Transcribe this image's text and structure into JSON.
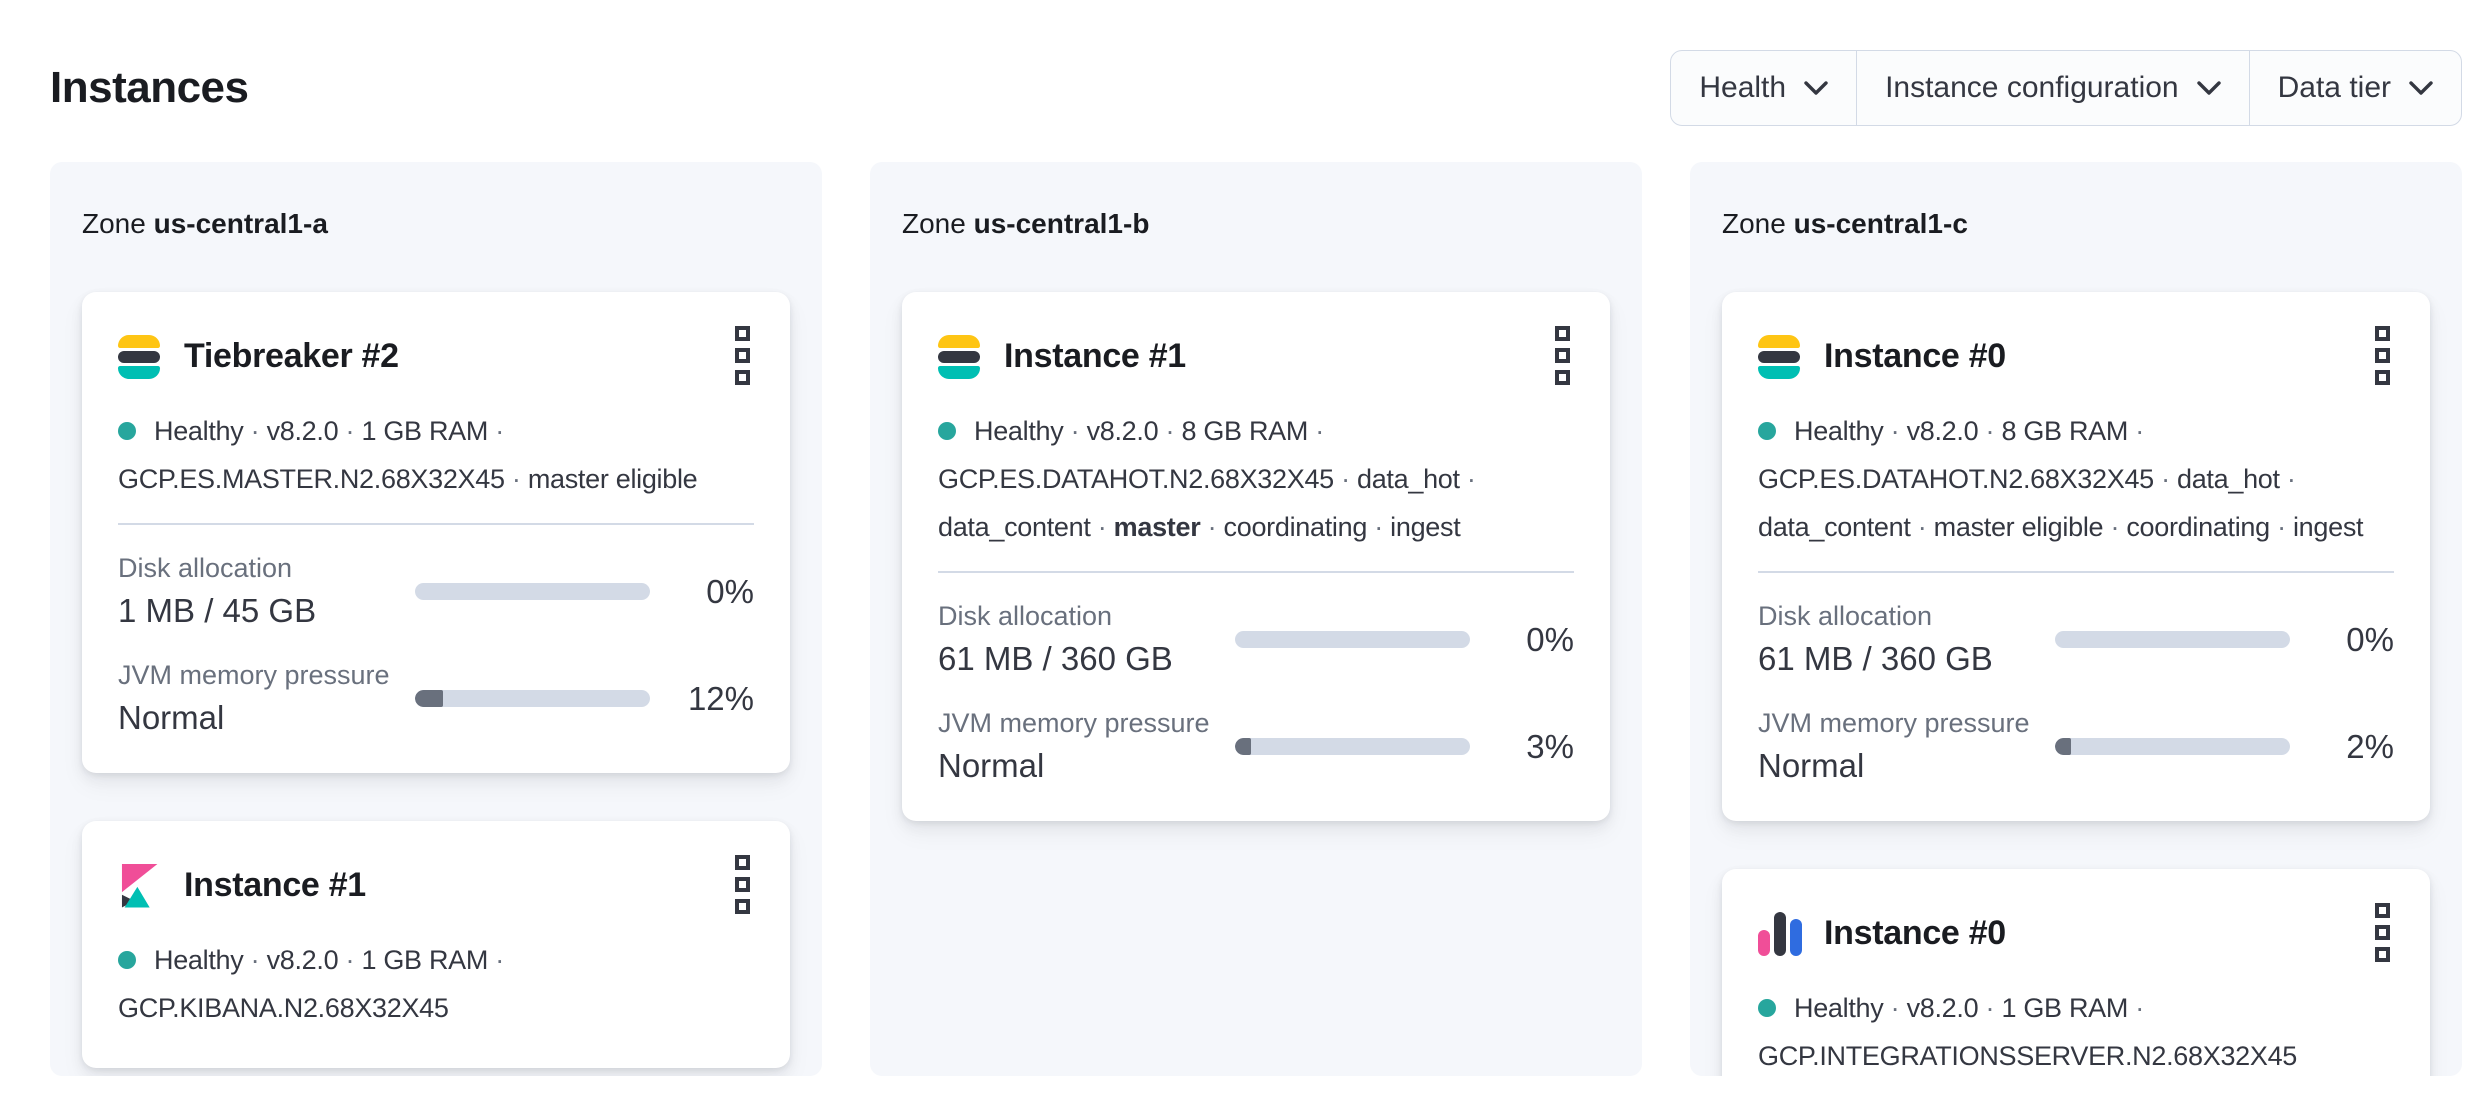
{
  "page": {
    "title": "Instances"
  },
  "filters": [
    {
      "label": "Health"
    },
    {
      "label": "Instance configuration"
    },
    {
      "label": "Data tier"
    }
  ],
  "colors": {
    "healthy_dot": "#27a69d",
    "progress_track": "#d3dae6",
    "progress_fill": "#69707d",
    "divider": "#d3dae6",
    "panel_bg": "#f5f7fb",
    "es_yellow": "#fec514",
    "es_dark": "#343741",
    "es_teal": "#00bfb3",
    "kibana_pink": "#f04e98",
    "kibana_dark": "#343741",
    "kibana_teal": "#00bfb3",
    "integrations_pink": "#f04e98",
    "integrations_dark": "#343741",
    "integrations_blue": "#2f6ce0"
  },
  "icons": {
    "menu": "boxes-vertical-icon",
    "dropdown": "chevron-down-icon"
  },
  "zones": [
    {
      "label": "Zone",
      "name": "us-central1-a",
      "instances": [
        {
          "title": "Tiebreaker #2",
          "logo": "elasticsearch",
          "status_segments": [
            {
              "text": "Healthy"
            },
            {
              "text": "v8.2.0"
            },
            {
              "text": "1 GB RAM"
            },
            {
              "text": "GCP.ES.MASTER.N2.68X32X45"
            },
            {
              "text": "master eligible"
            }
          ],
          "metrics": [
            {
              "label": "Disk allocation",
              "value": "1 MB / 45 GB",
              "percent": "0%",
              "fill_pct": 0
            },
            {
              "label": "JVM memory pressure",
              "value": "Normal",
              "percent": "12%",
              "fill_pct": 12
            }
          ]
        },
        {
          "title": "Instance #1",
          "logo": "kibana",
          "status_segments": [
            {
              "text": "Healthy"
            },
            {
              "text": "v8.2.0"
            },
            {
              "text": "1 GB RAM"
            },
            {
              "text": "GCP.KIBANA.N2.68X32X45"
            }
          ],
          "metrics": []
        }
      ]
    },
    {
      "label": "Zone",
      "name": "us-central1-b",
      "instances": [
        {
          "title": "Instance #1",
          "logo": "elasticsearch",
          "status_segments": [
            {
              "text": "Healthy"
            },
            {
              "text": "v8.2.0"
            },
            {
              "text": "8 GB RAM"
            },
            {
              "text": "GCP.ES.DATAHOT.N2.68X32X45"
            },
            {
              "text": "data_hot"
            },
            {
              "text": "data_content"
            },
            {
              "text": "master",
              "bold": true
            },
            {
              "text": "coordinating"
            },
            {
              "text": "ingest"
            }
          ],
          "metrics": [
            {
              "label": "Disk allocation",
              "value": "61 MB / 360 GB",
              "percent": "0%",
              "fill_pct": 0
            },
            {
              "label": "JVM memory pressure",
              "value": "Normal",
              "percent": "3%",
              "fill_pct": 3
            }
          ]
        }
      ]
    },
    {
      "label": "Zone",
      "name": "us-central1-c",
      "instances": [
        {
          "title": "Instance #0",
          "logo": "elasticsearch",
          "status_segments": [
            {
              "text": "Healthy"
            },
            {
              "text": "v8.2.0"
            },
            {
              "text": "8 GB RAM"
            },
            {
              "text": "GCP.ES.DATAHOT.N2.68X32X45"
            },
            {
              "text": "data_hot"
            },
            {
              "text": "data_content"
            },
            {
              "text": "master eligible"
            },
            {
              "text": "coordinating"
            },
            {
              "text": "ingest"
            }
          ],
          "metrics": [
            {
              "label": "Disk allocation",
              "value": "61 MB / 360 GB",
              "percent": "0%",
              "fill_pct": 0
            },
            {
              "label": "JVM memory pressure",
              "value": "Normal",
              "percent": "2%",
              "fill_pct": 2
            }
          ]
        },
        {
          "title": "Instance #0",
          "logo": "integrations-server",
          "status_segments": [
            {
              "text": "Healthy"
            },
            {
              "text": "v8.2.0"
            },
            {
              "text": "1 GB RAM"
            },
            {
              "text": "GCP.INTEGRATIONSSERVER.N2.68X32X45"
            }
          ],
          "metrics": []
        }
      ]
    }
  ]
}
